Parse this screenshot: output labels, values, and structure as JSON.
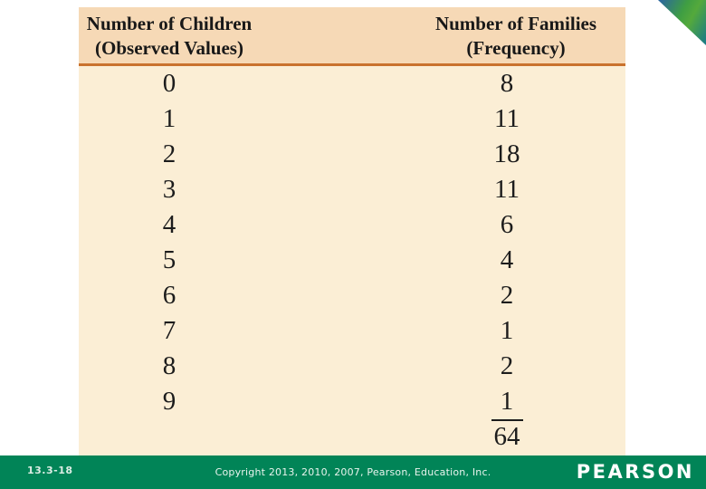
{
  "slide": {
    "table": {
      "header": {
        "col1_line1": "Number of Children",
        "col1_line2": "(Observed Values)",
        "col2_line1": "Number of Families",
        "col2_line2": "(Frequency)"
      },
      "rows": [
        {
          "children": "0",
          "families": "8"
        },
        {
          "children": "1",
          "families": "11"
        },
        {
          "children": "2",
          "families": "18"
        },
        {
          "children": "3",
          "families": "11"
        },
        {
          "children": "4",
          "families": "6"
        },
        {
          "children": "5",
          "families": "4"
        },
        {
          "children": "6",
          "families": "2"
        },
        {
          "children": "7",
          "families": "1"
        },
        {
          "children": "8",
          "families": "2"
        },
        {
          "children": "9",
          "families": "1"
        }
      ],
      "total_families": "64"
    },
    "footer": {
      "slide_number": "13.3-18",
      "copyright": "Copyright 2013, 2010, 2007, Pearson, Education, Inc.",
      "brand": "PEARSON"
    },
    "colors": {
      "table_header_bg": "#F6D9B6",
      "table_body_bg": "#FBEED5",
      "header_rule": "#C9722E",
      "footer_green": "#018457",
      "corner_gradient_blue": "#2A64A4",
      "corner_gradient_green": "#4FA53F",
      "corner_gradient_teal": "#17798A"
    }
  }
}
